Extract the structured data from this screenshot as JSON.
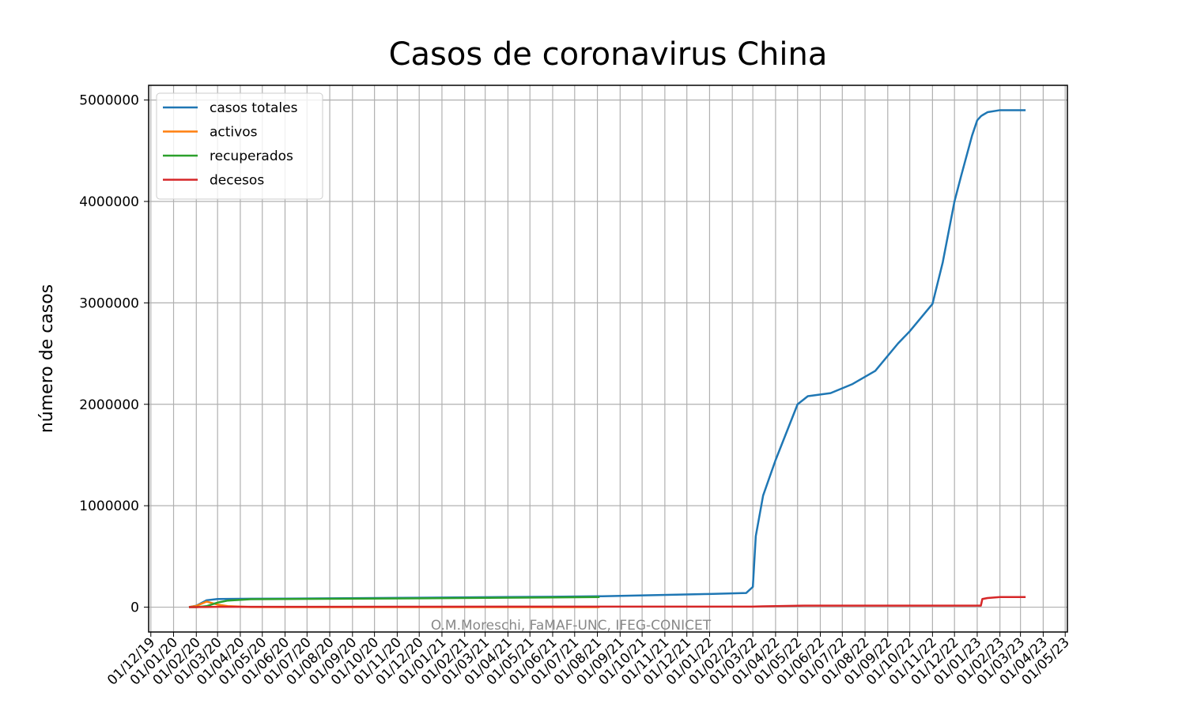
{
  "chart_data": {
    "type": "line",
    "title": "Casos de coronavirus China",
    "ylabel": "número de casos",
    "annotation": "O.M.Moreschi, FaMAF-UNC, IFEG-CONICET",
    "grid": true,
    "legend": "upper left",
    "x": [
      "2020-01-22",
      "2020-02-01",
      "2020-02-15",
      "2020-03-01",
      "2020-03-15",
      "2020-04-15",
      "2020-06-01",
      "2020-12-01",
      "2021-06-01",
      "2021-08-04",
      "2022-01-01",
      "2022-02-20",
      "2022-03-01",
      "2022-03-05",
      "2022-03-15",
      "2022-04-01",
      "2022-05-01",
      "2022-05-15",
      "2022-06-15",
      "2022-07-15",
      "2022-08-15",
      "2022-09-15",
      "2022-10-01",
      "2022-11-01",
      "2022-11-15",
      "2022-12-01",
      "2022-12-10",
      "2022-12-25",
      "2023-01-01",
      "2023-01-06",
      "2023-01-08",
      "2023-01-15",
      "2023-02-01",
      "2023-03-08"
    ],
    "series": [
      {
        "name": "casos totales",
        "color": "#1f77b4",
        "values": [
          548,
          14000,
          68000,
          80000,
          81000,
          83000,
          84000,
          93000,
          103000,
          107000,
          130000,
          140000,
          200000,
          700000,
          1100000,
          1450000,
          2000000,
          2080000,
          2110000,
          2200000,
          2330000,
          2600000,
          2720000,
          2990000,
          3400000,
          4000000,
          4250000,
          4650000,
          4800000,
          4840000,
          4850000,
          4880000,
          4900000,
          4900000
        ]
      },
      {
        "name": "activos",
        "color": "#ff7f0e",
        "values": [
          500,
          12000,
          55000,
          25000,
          10000,
          1500,
          100,
          300,
          500,
          600,
          null,
          null,
          null,
          null,
          null,
          null,
          null,
          null,
          null,
          null,
          null,
          null,
          null,
          null,
          null,
          null,
          null,
          null,
          null,
          null,
          null,
          null,
          null,
          null
        ]
      },
      {
        "name": "recuperados",
        "color": "#2ca02c",
        "values": [
          28,
          300,
          10000,
          45000,
          65000,
          78000,
          80000,
          87000,
          96000,
          100000,
          null,
          null,
          null,
          null,
          null,
          null,
          null,
          null,
          null,
          null,
          null,
          null,
          null,
          null,
          null,
          null,
          null,
          null,
          null,
          null,
          null,
          null,
          null,
          null
        ]
      },
      {
        "name": "decesos",
        "color": "#d62728",
        "values": [
          17,
          300,
          1700,
          2900,
          3200,
          3340,
          3340,
          4700,
          4800,
          4900,
          5000,
          5000,
          5500,
          6000,
          8000,
          10000,
          14000,
          15000,
          15000,
          15000,
          15000,
          15000,
          15000,
          15000,
          15000,
          15000,
          15000,
          15000,
          15000,
          15000,
          80000,
          90000,
          100000,
          100000
        ]
      }
    ],
    "xlim": [
      "2019-11-28",
      "2023-05-04"
    ],
    "xticks": [
      {
        "value": "2019-12-01",
        "label": "01/12/19"
      },
      {
        "value": "2020-01-01",
        "label": "01/01/20"
      },
      {
        "value": "2020-02-01",
        "label": "01/02/20"
      },
      {
        "value": "2020-03-01",
        "label": "01/03/20"
      },
      {
        "value": "2020-04-01",
        "label": "01/04/20"
      },
      {
        "value": "2020-05-01",
        "label": "01/05/20"
      },
      {
        "value": "2020-06-01",
        "label": "01/06/20"
      },
      {
        "value": "2020-07-01",
        "label": "01/07/20"
      },
      {
        "value": "2020-08-01",
        "label": "01/08/20"
      },
      {
        "value": "2020-09-01",
        "label": "01/09/20"
      },
      {
        "value": "2020-10-01",
        "label": "01/10/20"
      },
      {
        "value": "2020-11-01",
        "label": "01/11/20"
      },
      {
        "value": "2020-12-01",
        "label": "01/12/20"
      },
      {
        "value": "2021-01-01",
        "label": "01/01/21"
      },
      {
        "value": "2021-02-01",
        "label": "01/02/21"
      },
      {
        "value": "2021-03-01",
        "label": "01/03/21"
      },
      {
        "value": "2021-04-01",
        "label": "01/04/21"
      },
      {
        "value": "2021-05-01",
        "label": "01/05/21"
      },
      {
        "value": "2021-06-01",
        "label": "01/06/21"
      },
      {
        "value": "2021-07-01",
        "label": "01/07/21"
      },
      {
        "value": "2021-08-01",
        "label": "01/08/21"
      },
      {
        "value": "2021-09-01",
        "label": "01/09/21"
      },
      {
        "value": "2021-10-01",
        "label": "01/10/21"
      },
      {
        "value": "2021-11-01",
        "label": "01/11/21"
      },
      {
        "value": "2021-12-01",
        "label": "01/12/21"
      },
      {
        "value": "2022-01-01",
        "label": "01/01/22"
      },
      {
        "value": "2022-02-01",
        "label": "01/02/22"
      },
      {
        "value": "2022-03-01",
        "label": "01/03/22"
      },
      {
        "value": "2022-04-01",
        "label": "01/04/22"
      },
      {
        "value": "2022-05-01",
        "label": "01/05/22"
      },
      {
        "value": "2022-06-01",
        "label": "01/06/22"
      },
      {
        "value": "2022-07-01",
        "label": "01/07/22"
      },
      {
        "value": "2022-08-01",
        "label": "01/08/22"
      },
      {
        "value": "2022-09-01",
        "label": "01/09/22"
      },
      {
        "value": "2022-10-01",
        "label": "01/10/22"
      },
      {
        "value": "2022-11-01",
        "label": "01/11/22"
      },
      {
        "value": "2022-12-01",
        "label": "01/12/22"
      },
      {
        "value": "2023-01-01",
        "label": "01/01/23"
      },
      {
        "value": "2023-02-01",
        "label": "01/02/23"
      },
      {
        "value": "2023-03-01",
        "label": "01/03/23"
      },
      {
        "value": "2023-04-01",
        "label": "01/04/23"
      },
      {
        "value": "2023-05-01",
        "label": "01/05/23"
      }
    ],
    "ylim": [
      -245000,
      5145000
    ],
    "yticks": [
      0,
      1000000,
      2000000,
      3000000,
      4000000,
      5000000
    ]
  }
}
